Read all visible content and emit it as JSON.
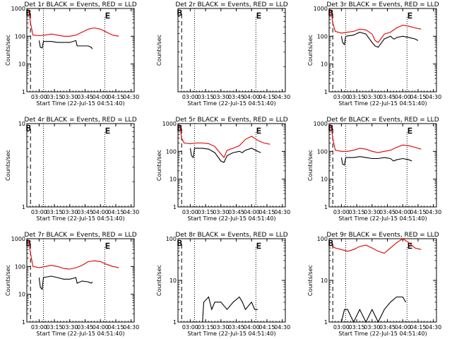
{
  "figure": {
    "xlabel": "Start Time (22-Jul-15 04:51:40)",
    "ylabel": "Counts/sec",
    "x_ticks": [
      "03:00",
      "03:15",
      "03:30",
      "03:45",
      "04:00",
      "04:15",
      "04:30"
    ],
    "colors": {
      "events": "#000000",
      "lld": "#e00000",
      "axes": "#000000"
    }
  },
  "chart_data": [
    {
      "type": "line",
      "title": "Det 1r BLACK = Events, RED = LLD",
      "ylim": [
        1,
        1000
      ],
      "y_ticks": [
        "1",
        "10",
        "100",
        "1000"
      ],
      "markers": [
        "B",
        "E"
      ],
      "series": [
        {
          "name": "LLD",
          "color": "#e00000",
          "points": [
            [
              2.83,
              900
            ],
            [
              2.86,
              300
            ],
            [
              2.9,
              110
            ],
            [
              3.0,
              105
            ],
            [
              3.1,
              110
            ],
            [
              3.2,
              120
            ],
            [
              3.3,
              110
            ],
            [
              3.4,
              100
            ],
            [
              3.5,
              100
            ],
            [
              3.6,
              110
            ],
            [
              3.7,
              140
            ],
            [
              3.8,
              180
            ],
            [
              3.9,
              200
            ],
            [
              4.0,
              180
            ],
            [
              4.1,
              140
            ],
            [
              4.2,
              110
            ],
            [
              4.3,
              100
            ]
          ]
        },
        {
          "name": "Events",
          "color": "#000000",
          "points": [
            [
              3.0,
              70
            ],
            [
              3.02,
              40
            ],
            [
              3.05,
              38
            ],
            [
              3.07,
              65
            ],
            [
              3.2,
              65
            ],
            [
              3.3,
              60
            ],
            [
              3.4,
              60
            ],
            [
              3.5,
              60
            ],
            [
              3.6,
              70
            ],
            [
              3.62,
              45
            ],
            [
              3.7,
              45
            ],
            [
              3.8,
              45
            ],
            [
              3.85,
              40
            ],
            [
              3.87,
              35
            ]
          ]
        }
      ]
    },
    {
      "type": "line",
      "title": "Det 2r BLACK = Events, RED = LLD",
      "ylim": [
        0.1,
        1
      ],
      "y_ticks": [],
      "markers": [
        "B",
        "E"
      ],
      "series": []
    },
    {
      "type": "line",
      "title": "Det 3r BLACK = Events, RED = LLD",
      "ylim": [
        1,
        1000
      ],
      "y_ticks": [
        "1",
        "10",
        "100",
        "1000"
      ],
      "markers": [
        "B",
        "E"
      ],
      "series": [
        {
          "name": "LLD",
          "color": "#e00000",
          "points": [
            [
              2.83,
              900
            ],
            [
              2.86,
              300
            ],
            [
              2.9,
              150
            ],
            [
              3.0,
              130
            ],
            [
              3.1,
              140
            ],
            [
              3.2,
              150
            ],
            [
              3.3,
              180
            ],
            [
              3.4,
              170
            ],
            [
              3.5,
              120
            ],
            [
              3.55,
              70
            ],
            [
              3.6,
              60
            ],
            [
              3.7,
              120
            ],
            [
              3.8,
              140
            ],
            [
              3.9,
              200
            ],
            [
              4.0,
              250
            ],
            [
              4.1,
              230
            ],
            [
              4.2,
              200
            ],
            [
              4.3,
              180
            ]
          ]
        },
        {
          "name": "Events",
          "color": "#000000",
          "points": [
            [
              3.0,
              100
            ],
            [
              3.02,
              60
            ],
            [
              3.05,
              50
            ],
            [
              3.07,
              100
            ],
            [
              3.2,
              110
            ],
            [
              3.3,
              140
            ],
            [
              3.4,
              120
            ],
            [
              3.5,
              60
            ],
            [
              3.55,
              45
            ],
            [
              3.6,
              40
            ],
            [
              3.7,
              80
            ],
            [
              3.8,
              100
            ],
            [
              3.85,
              80
            ],
            [
              3.87,
              80
            ],
            [
              3.9,
              90
            ],
            [
              4.0,
              100
            ],
            [
              4.1,
              90
            ],
            [
              4.2,
              80
            ],
            [
              4.25,
              70
            ]
          ]
        }
      ]
    },
    {
      "type": "line",
      "title": "Det 4r BLACK = Events, RED = LLD",
      "ylim": [
        1,
        10
      ],
      "y_ticks": [
        "1",
        "10"
      ],
      "markers": [
        "B",
        "E"
      ],
      "series": []
    },
    {
      "type": "line",
      "title": "Det 5r BLACK = Events, RED = LLD",
      "ylim": [
        1,
        1000
      ],
      "y_ticks": [
        "1",
        "10",
        "100",
        "1000"
      ],
      "markers": [
        "B",
        "E"
      ],
      "series": [
        {
          "name": "LLD",
          "color": "#e00000",
          "points": [
            [
              2.83,
              900
            ],
            [
              2.86,
              300
            ],
            [
              2.9,
              200
            ],
            [
              3.0,
              190
            ],
            [
              3.1,
              200
            ],
            [
              3.2,
              200
            ],
            [
              3.3,
              190
            ],
            [
              3.4,
              150
            ],
            [
              3.5,
              80
            ],
            [
              3.55,
              60
            ],
            [
              3.6,
              110
            ],
            [
              3.7,
              130
            ],
            [
              3.8,
              160
            ],
            [
              3.9,
              270
            ],
            [
              4.0,
              350
            ],
            [
              4.1,
              250
            ],
            [
              4.2,
              200
            ],
            [
              4.3,
              180
            ]
          ]
        },
        {
          "name": "Events",
          "color": "#000000",
          "points": [
            [
              3.0,
              130
            ],
            [
              3.02,
              70
            ],
            [
              3.05,
              60
            ],
            [
              3.07,
              130
            ],
            [
              3.2,
              130
            ],
            [
              3.3,
              120
            ],
            [
              3.4,
              90
            ],
            [
              3.5,
              45
            ],
            [
              3.55,
              40
            ],
            [
              3.6,
              70
            ],
            [
              3.7,
              90
            ],
            [
              3.8,
              100
            ],
            [
              3.85,
              90
            ],
            [
              3.9,
              110
            ],
            [
              4.0,
              130
            ],
            [
              4.1,
              100
            ],
            [
              4.15,
              90
            ]
          ]
        }
      ]
    },
    {
      "type": "line",
      "title": "Det 6r BLACK = Events, RED = LLD",
      "ylim": [
        1,
        1000
      ],
      "y_ticks": [
        "1",
        "10",
        "100",
        "1000"
      ],
      "markers": [
        "B",
        "E"
      ],
      "series": [
        {
          "name": "LLD",
          "color": "#e00000",
          "points": [
            [
              2.83,
              900
            ],
            [
              2.86,
              300
            ],
            [
              2.9,
              110
            ],
            [
              3.0,
              100
            ],
            [
              3.1,
              100
            ],
            [
              3.2,
              110
            ],
            [
              3.3,
              130
            ],
            [
              3.4,
              120
            ],
            [
              3.5,
              100
            ],
            [
              3.6,
              90
            ],
            [
              3.7,
              100
            ],
            [
              3.8,
              110
            ],
            [
              3.9,
              140
            ],
            [
              4.0,
              170
            ],
            [
              4.1,
              160
            ],
            [
              4.2,
              140
            ],
            [
              4.3,
              120
            ]
          ]
        },
        {
          "name": "Events",
          "color": "#000000",
          "points": [
            [
              3.0,
              60
            ],
            [
              3.02,
              35
            ],
            [
              3.05,
              32
            ],
            [
              3.07,
              60
            ],
            [
              3.2,
              60
            ],
            [
              3.3,
              65
            ],
            [
              3.4,
              60
            ],
            [
              3.5,
              55
            ],
            [
              3.6,
              55
            ],
            [
              3.7,
              60
            ],
            [
              3.8,
              55
            ],
            [
              3.85,
              45
            ],
            [
              3.9,
              50
            ],
            [
              4.0,
              55
            ],
            [
              4.1,
              50
            ],
            [
              4.15,
              45
            ]
          ]
        }
      ]
    },
    {
      "type": "line",
      "title": "Det 7r BLACK = Events, RED = LLD",
      "ylim": [
        1,
        1000
      ],
      "y_ticks": [
        "1",
        "10",
        "100",
        "1000"
      ],
      "markers": [
        "B",
        "E"
      ],
      "series": [
        {
          "name": "LLD",
          "color": "#e00000",
          "points": [
            [
              2.83,
              900
            ],
            [
              2.86,
              300
            ],
            [
              2.9,
              100
            ],
            [
              3.0,
              90
            ],
            [
              3.1,
              100
            ],
            [
              3.2,
              110
            ],
            [
              3.3,
              100
            ],
            [
              3.4,
              85
            ],
            [
              3.5,
              80
            ],
            [
              3.6,
              90
            ],
            [
              3.7,
              110
            ],
            [
              3.8,
              150
            ],
            [
              3.9,
              160
            ],
            [
              4.0,
              150
            ],
            [
              4.1,
              120
            ],
            [
              4.2,
              100
            ],
            [
              4.3,
              90
            ]
          ]
        },
        {
          "name": "Events",
          "color": "#000000",
          "points": [
            [
              3.0,
              40
            ],
            [
              3.02,
              18
            ],
            [
              3.05,
              15
            ],
            [
              3.07,
              40
            ],
            [
              3.2,
              45
            ],
            [
              3.3,
              40
            ],
            [
              3.4,
              35
            ],
            [
              3.5,
              35
            ],
            [
              3.6,
              40
            ],
            [
              3.62,
              25
            ],
            [
              3.7,
              30
            ],
            [
              3.8,
              28
            ],
            [
              3.85,
              25
            ],
            [
              3.87,
              28
            ]
          ]
        }
      ]
    },
    {
      "type": "line",
      "title": "Det 8r BLACK = Events, RED = LLD",
      "ylim": [
        1,
        100
      ],
      "y_ticks": [
        "1",
        "10",
        "100"
      ],
      "markers": [
        "B",
        "E"
      ],
      "series": [
        {
          "name": "Events",
          "color": "#000000",
          "points": [
            [
              3.2,
              1
            ],
            [
              3.22,
              3
            ],
            [
              3.3,
              4
            ],
            [
              3.35,
              2
            ],
            [
              3.4,
              3
            ],
            [
              3.5,
              3
            ],
            [
              3.6,
              2
            ],
            [
              3.7,
              3
            ],
            [
              3.8,
              4
            ],
            [
              3.85,
              3
            ],
            [
              3.9,
              2
            ],
            [
              4.0,
              3
            ],
            [
              4.05,
              2
            ],
            [
              4.1,
              2
            ]
          ]
        }
      ]
    },
    {
      "type": "line",
      "title": "Det 9r BLACK = Events, RED = LLD",
      "ylim": [
        1,
        100
      ],
      "y_ticks": [
        "1",
        "10",
        "100"
      ],
      "markers": [
        "B",
        "E"
      ],
      "series": [
        {
          "name": "LLD",
          "color": "#e00000",
          "points": [
            [
              2.83,
              70
            ],
            [
              2.9,
              60
            ],
            [
              3.0,
              55
            ],
            [
              3.1,
              50
            ],
            [
              3.2,
              55
            ],
            [
              3.3,
              65
            ],
            [
              3.4,
              70
            ],
            [
              3.5,
              60
            ],
            [
              3.6,
              50
            ],
            [
              3.7,
              45
            ],
            [
              3.8,
              60
            ],
            [
              3.9,
              80
            ],
            [
              4.0,
              100
            ],
            [
              4.1,
              80
            ],
            [
              4.2,
              60
            ],
            [
              4.3,
              55
            ]
          ]
        },
        {
          "name": "Events",
          "color": "#000000",
          "points": [
            [
              3.0,
              1
            ],
            [
              3.05,
              2
            ],
            [
              3.1,
              2
            ],
            [
              3.2,
              1
            ],
            [
              3.3,
              2
            ],
            [
              3.4,
              1
            ],
            [
              3.5,
              2
            ],
            [
              3.6,
              1
            ],
            [
              3.7,
              2
            ],
            [
              3.8,
              3
            ],
            [
              3.9,
              4
            ],
            [
              4.0,
              4
            ],
            [
              4.05,
              3
            ]
          ]
        }
      ]
    }
  ]
}
